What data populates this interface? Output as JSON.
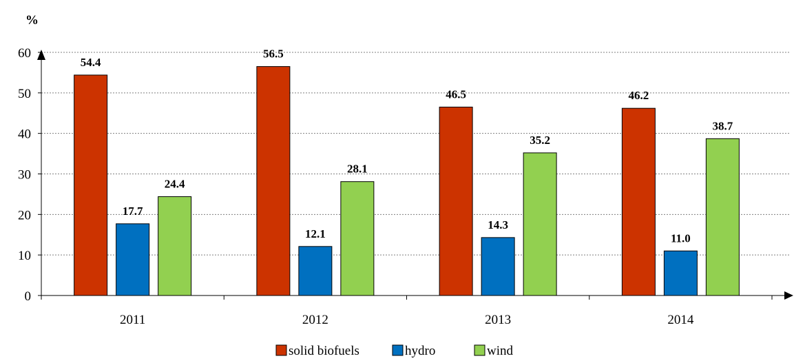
{
  "chart_data": {
    "type": "bar",
    "ylabel": "%",
    "ylim": [
      0,
      60
    ],
    "yticks": [
      0,
      10,
      20,
      30,
      40,
      50,
      60
    ],
    "categories": [
      "2011",
      "2012",
      "2013",
      "2014"
    ],
    "series": [
      {
        "name": "solid biofuels",
        "color": "#cc3300",
        "values": [
          54.4,
          56.5,
          46.5,
          46.2
        ],
        "labels": [
          "54.4",
          "56.5",
          "46.5",
          "46.2"
        ]
      },
      {
        "name": "hydro",
        "color": "#0070c0",
        "values": [
          17.7,
          12.1,
          14.3,
          11.0
        ],
        "labels": [
          "17.7",
          "12.1",
          "14.3",
          "11.0"
        ]
      },
      {
        "name": "wind",
        "color": "#92d050",
        "values": [
          24.4,
          28.1,
          35.2,
          38.7
        ],
        "labels": [
          "24.4",
          "28.1",
          "35.2",
          "38.7"
        ]
      }
    ],
    "grid": true,
    "legend": "bottom"
  }
}
